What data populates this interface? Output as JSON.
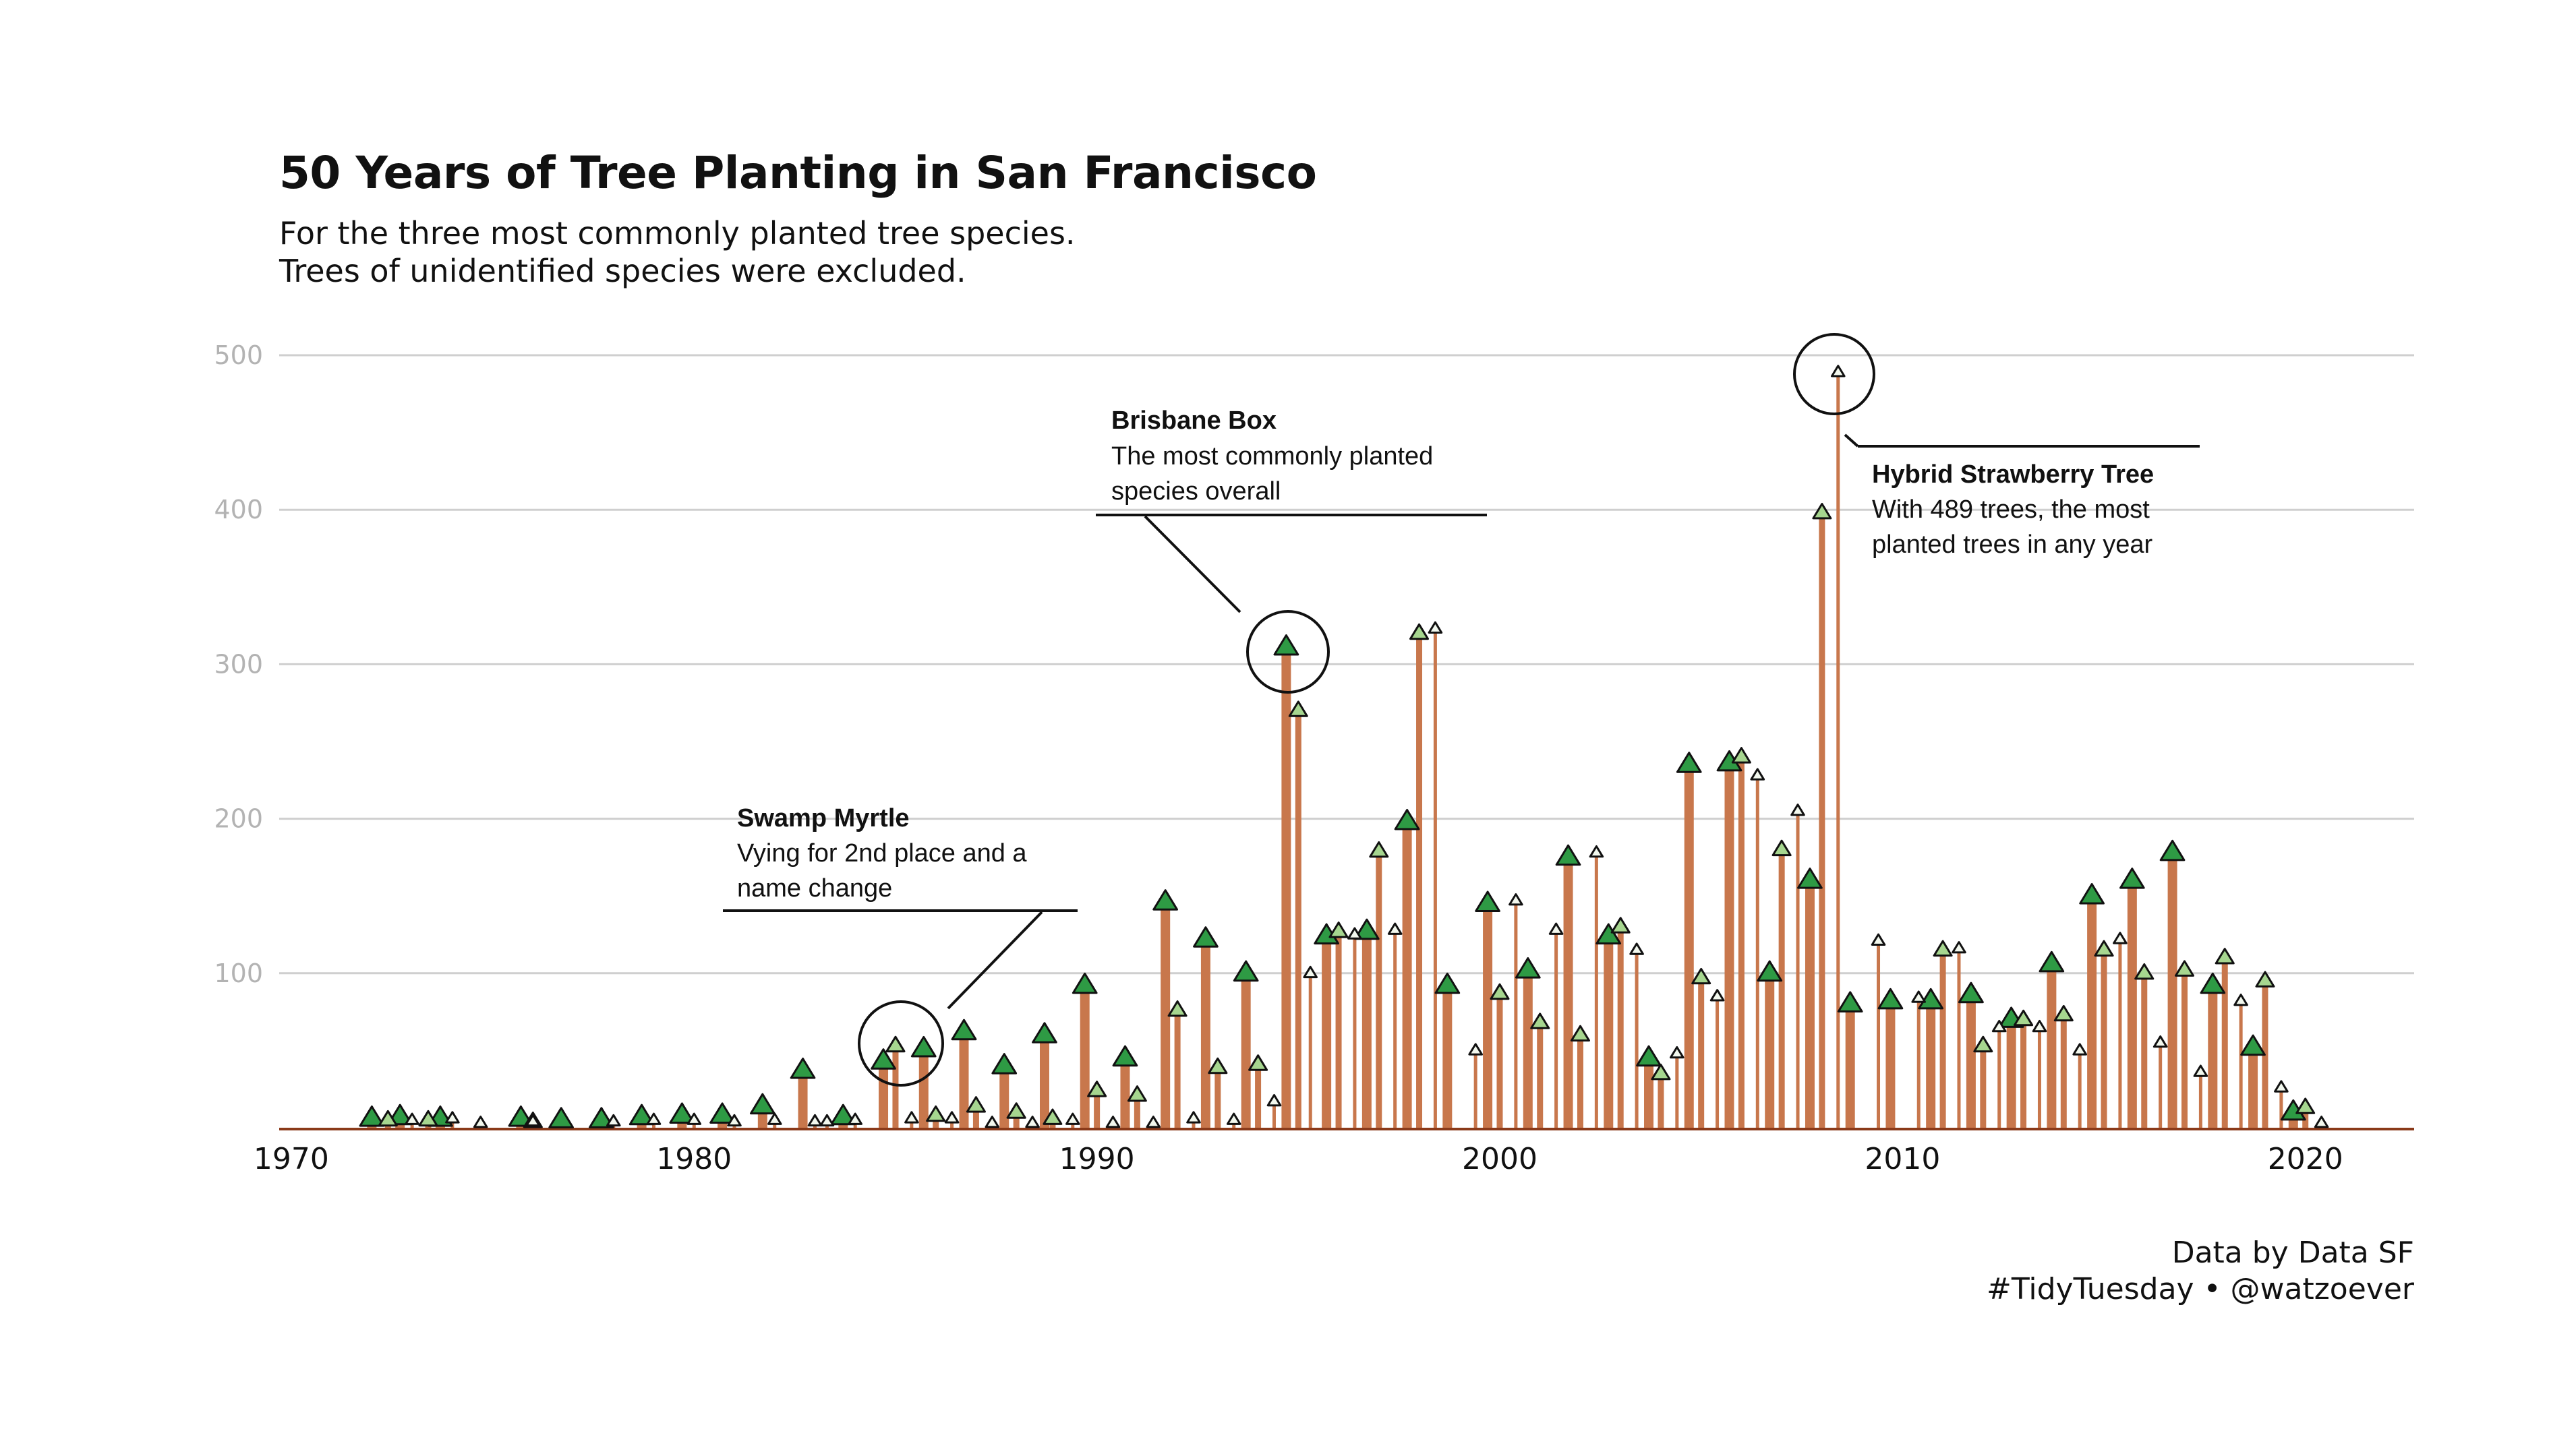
{
  "title": "50 Years of Tree Planting in San Francisco",
  "subtitle_line1": "For the three most commonly planted tree species.",
  "subtitle_line2": "Trees of unidentified species were excluded.",
  "caption_line1": "Data by Data SF",
  "caption_line2": "#TidyTuesday • @watzoever",
  "colors": {
    "bar": "#c8774c",
    "baseline": "#8a3a1a",
    "grid": "#cfcfcf",
    "swamp_myrtle": "#2e9a44",
    "brisbane_box": "#a6d68f",
    "hybrid_strawberry": "#f2f8ee"
  },
  "chart_data": {
    "type": "bar",
    "xlim": [
      1969.7,
      2022.7
    ],
    "ylim": [
      0,
      500
    ],
    "x_ticks": [
      1970,
      1980,
      1990,
      2000,
      2010,
      2020
    ],
    "y_ticks": [
      100,
      200,
      300,
      400,
      500
    ],
    "grid": true,
    "series": [
      {
        "key": "sm",
        "x": [
          1972.0,
          1972.7,
          1973.7,
          1975.7,
          1976.7,
          1977.7,
          1978.7,
          1979.7,
          1980.7,
          1981.7,
          1982.7,
          1983.7,
          1984.7,
          1985.7,
          1986.7,
          1987.7,
          1988.7,
          1989.7,
          1990.7,
          1991.7,
          1992.7,
          1993.7,
          1994.7,
          1995.7,
          1996.7,
          1997.7,
          1998.7,
          1999.7,
          2000.7,
          2001.7,
          2002.7,
          2003.7,
          2004.7,
          2005.7,
          2006.7,
          2007.7,
          2008.7,
          2009.7,
          2010.7,
          2011.7,
          2012.7,
          2013.7,
          2014.7,
          2015.7,
          2016.7,
          2017.7,
          2018.7,
          2019.7
        ],
        "y": [
          6,
          7,
          6,
          6,
          5,
          5,
          7,
          8,
          8,
          14,
          37,
          7,
          43,
          51,
          62,
          40,
          60,
          92,
          45,
          146,
          122,
          100,
          311,
          124,
          127,
          198,
          92,
          145,
          102,
          175,
          124,
          45,
          235,
          236,
          100,
          160,
          80,
          82,
          82,
          86,
          70,
          106,
          150,
          160,
          178,
          92,
          52,
          10
        ]
      },
      {
        "key": "bb",
        "x": [
          1972.4,
          1973.4,
          1976.0,
          1985.0,
          1986.0,
          1987.0,
          1988.0,
          1988.9,
          1990.0,
          1991.0,
          1992.0,
          1993.0,
          1994.0,
          1995.0,
          1996.0,
          1997.0,
          1998.0,
          2000.0,
          2001.0,
          2002.0,
          2003.0,
          2004.0,
          2005.0,
          2006.0,
          2007.0,
          2008.0,
          2011.0,
          2012.0,
          2013.0,
          2014.0,
          2015.0,
          2016.0,
          2017.0,
          2018.0,
          2019.0,
          2020.0
        ],
        "y": [
          5,
          5,
          4,
          53,
          8,
          14,
          10,
          6,
          24,
          21,
          76,
          39,
          41,
          270,
          127,
          179,
          320,
          87,
          68,
          60,
          130,
          35,
          97,
          240,
          180,
          398,
          115,
          53,
          70,
          73,
          115,
          100,
          102,
          110,
          95,
          13
        ]
      },
      {
        "key": "hs",
        "x": [
          1973.0,
          1974.0,
          1974.7,
          1976.0,
          1978.0,
          1979.0,
          1980.0,
          1981.0,
          1982.0,
          1983.0,
          1983.3,
          1984.0,
          1985.4,
          1986.4,
          1987.4,
          1988.4,
          1989.4,
          1990.4,
          1991.4,
          1992.4,
          1993.4,
          1994.4,
          1995.3,
          1996.4,
          1997.4,
          1998.4,
          1999.4,
          2000.4,
          2001.4,
          2002.4,
          2003.4,
          2004.4,
          2005.4,
          2006.4,
          2007.4,
          2008.4,
          2009.4,
          2010.4,
          2011.4,
          2012.4,
          2013.4,
          2014.4,
          2015.4,
          2016.4,
          2017.4,
          2018.4,
          2019.4,
          2020.4
        ],
        "y": [
          5,
          6,
          3,
          4,
          4,
          5,
          5,
          4,
          5,
          4,
          4,
          5,
          6,
          6,
          3,
          3,
          5,
          3,
          3,
          6,
          5,
          17,
          100,
          125,
          128,
          323,
          50,
          147,
          128,
          178,
          115,
          48,
          85,
          228,
          205,
          489,
          121,
          84,
          116,
          65,
          65,
          50,
          122,
          55,
          36,
          82,
          26,
          3
        ]
      }
    ],
    "annotations": [
      {
        "title": "Swamp Myrtle",
        "line1": "Vying for 2nd place and a",
        "line2": "name change"
      },
      {
        "title": "Brisbane Box",
        "line1": "The most commonly planted",
        "line2": "species overall"
      },
      {
        "title": "Hybrid Strawberry Tree",
        "line1": "With 489 trees, the most",
        "line2": "planted trees in any year"
      }
    ]
  }
}
